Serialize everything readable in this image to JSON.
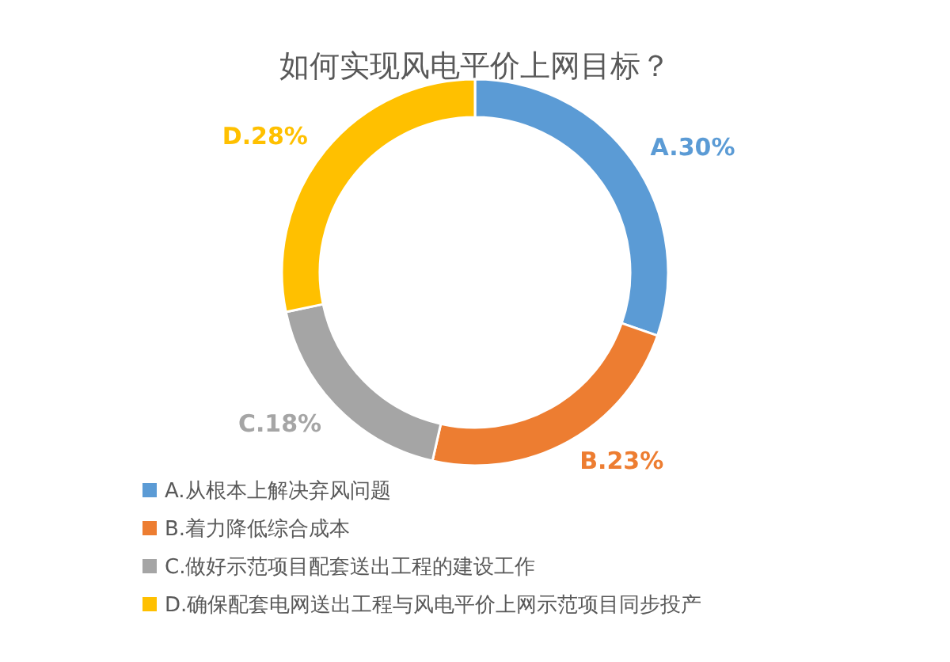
{
  "chart_data": {
    "type": "donut",
    "title": "如何实现风电平价上网目标？",
    "categories": [
      "A.从根本上解决弃风问题",
      "B.着力降低综合成本",
      "C.做好示范项目配套送出工程的建设工作",
      "D.确保配套电网送出工程与风电平价上网示范项目同步投产"
    ],
    "values": [
      30,
      23,
      18,
      28
    ],
    "colors": [
      "#5b9bd5",
      "#ed7d31",
      "#a5a5a5",
      "#ffc000"
    ],
    "value_labels": [
      "A.30%",
      "B.23%",
      "C.18%",
      "D.28%"
    ],
    "legend": "bottom left"
  }
}
